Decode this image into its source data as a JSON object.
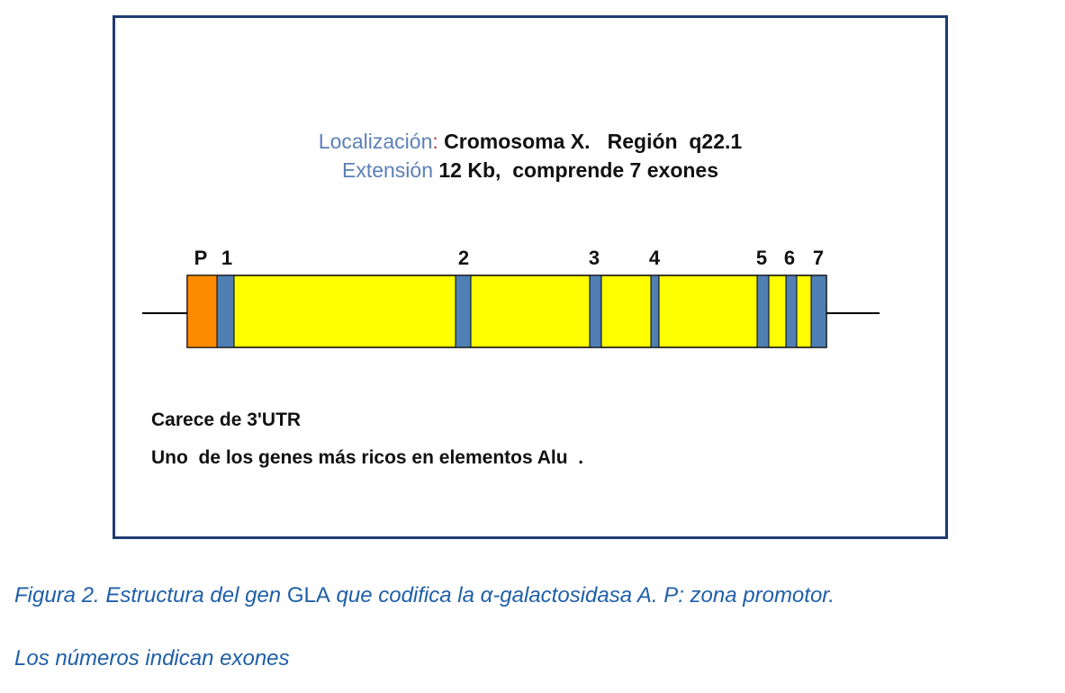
{
  "figure": {
    "location_label": "Localización",
    "location_colon": ":",
    "location_value": "Cromosoma X.   Región  q22.1",
    "extension_label": "Extensión",
    "extension_value": "12 Kb,  comprende 7 exones",
    "promoter_label": "P",
    "exon_labels": [
      "1",
      "2",
      "3",
      "4",
      "5",
      "6",
      "7"
    ],
    "note_1": "Carece de 3'UTR",
    "note_2": "Uno  de los genes más ricos en elementos Alu  .",
    "colors": {
      "frame": "#1f3b73",
      "promoter": "#ff8c00",
      "intron": "#ffff00",
      "exon": "#4f7fb3",
      "label_blue": "#5b80b8",
      "colon_red": "#c0392b"
    }
  },
  "caption": {
    "line1_a": "Figura 2. Estructura del gen ",
    "line1_gene": "GLA",
    "line1_b": " que codifica la α-galactosidasa A. P: zona promotor.",
    "line2": "Los números indican exones",
    "color": "#1f5fa8"
  }
}
